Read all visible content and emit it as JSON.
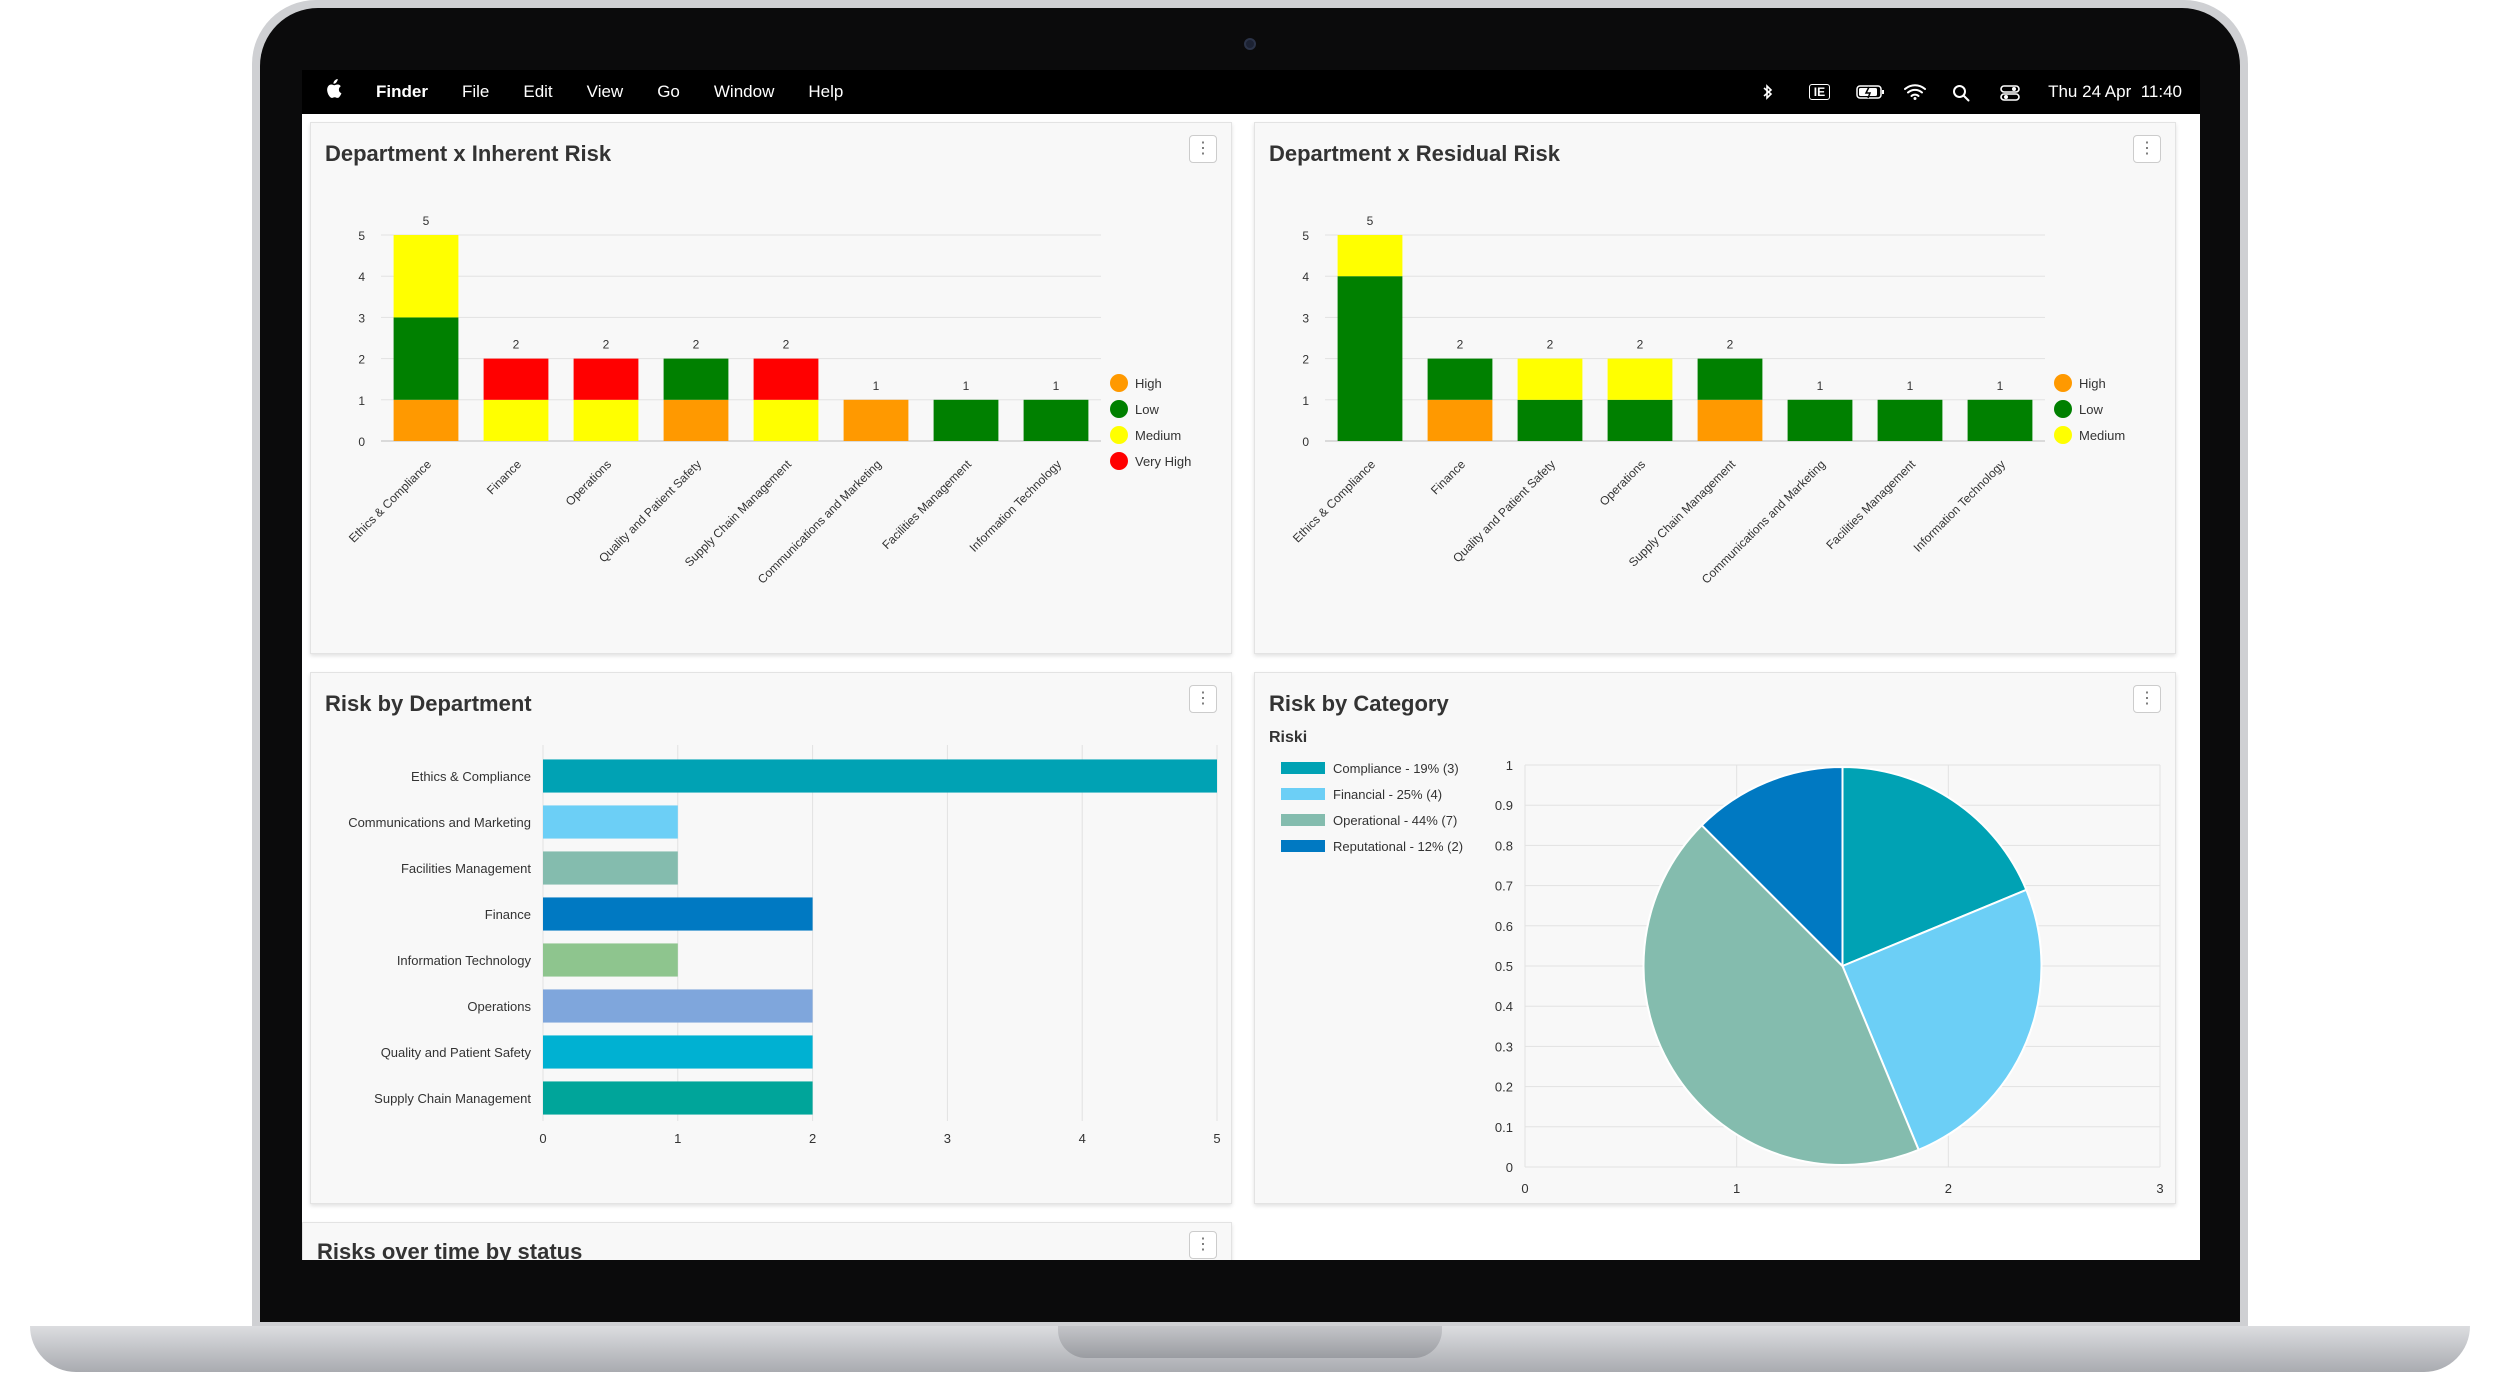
{
  "menubar": {
    "app": "Finder",
    "items": [
      "File",
      "Edit",
      "View",
      "Go",
      "Window",
      "Help"
    ],
    "status_input": "IE",
    "clock": "Thu 24 Apr  11:40"
  },
  "cards": {
    "inherent": {
      "title": "Department x Inherent Risk",
      "menu": "⋮"
    },
    "residual": {
      "title": "Department x Residual Risk",
      "menu": "⋮"
    },
    "by_department": {
      "title": "Risk by Department",
      "menu": "⋮"
    },
    "by_category": {
      "title": "Risk by Category",
      "subtitle": "Riski",
      "menu": "⋮"
    },
    "over_time": {
      "title": "Risks over time by status",
      "menu": "⋮"
    }
  },
  "colors": {
    "high": "#ff9900",
    "low": "#008000",
    "medium": "#ffff00",
    "very_high": "#ff0000"
  },
  "chart_data": [
    {
      "id": "inherent",
      "type": "bar",
      "stacked": true,
      "categories": [
        "Ethics & Compliance",
        "Finance",
        "Operations",
        "Quality and Patient Safety",
        "Supply Chain Management",
        "Communications and Marketing",
        "Facilities Management",
        "Information Technology"
      ],
      "series": [
        {
          "name": "High",
          "color": "#ff9900",
          "values": [
            1,
            0,
            0,
            1,
            0,
            1,
            0,
            0
          ]
        },
        {
          "name": "Low",
          "color": "#008000",
          "values": [
            2,
            0,
            0,
            1,
            0,
            0,
            1,
            1
          ]
        },
        {
          "name": "Medium",
          "color": "#ffff00",
          "values": [
            2,
            1,
            1,
            0,
            1,
            0,
            0,
            0
          ]
        },
        {
          "name": "Very High",
          "color": "#ff0000",
          "values": [
            0,
            1,
            1,
            0,
            1,
            0,
            0,
            0
          ]
        }
      ],
      "stack_order": [
        "High",
        "Low",
        "Medium",
        "Very High"
      ],
      "totals": [
        5,
        2,
        2,
        2,
        2,
        1,
        1,
        1
      ],
      "y_ticks": [
        0,
        1,
        2,
        3,
        4,
        5
      ],
      "ylim": [
        0,
        5
      ],
      "legend": "right"
    },
    {
      "id": "residual",
      "type": "bar",
      "stacked": true,
      "categories": [
        "Ethics & Compliance",
        "Finance",
        "Quality and Patient Safety",
        "Operations",
        "Supply Chain Management",
        "Communications and Marketing",
        "Facilities Management",
        "Information Technology"
      ],
      "series": [
        {
          "name": "High",
          "color": "#ff9900",
          "values": [
            0,
            1,
            0,
            0,
            1,
            0,
            0,
            0
          ]
        },
        {
          "name": "Low",
          "color": "#008000",
          "values": [
            4,
            1,
            1,
            1,
            1,
            1,
            1,
            1
          ]
        },
        {
          "name": "Medium",
          "color": "#ffff00",
          "values": [
            1,
            0,
            1,
            1,
            0,
            0,
            0,
            0
          ]
        }
      ],
      "stack_order": [
        "High",
        "Low",
        "Medium"
      ],
      "totals": [
        5,
        2,
        2,
        2,
        2,
        1,
        1,
        1
      ],
      "y_ticks": [
        0,
        1,
        2,
        3,
        4,
        5
      ],
      "ylim": [
        0,
        5
      ],
      "legend": "right"
    },
    {
      "id": "by_department",
      "type": "bar",
      "orientation": "horizontal",
      "categories": [
        "Ethics & Compliance",
        "Communications and Marketing",
        "Facilities Management",
        "Finance",
        "Information Technology",
        "Operations",
        "Quality and Patient Safety",
        "Supply Chain Management"
      ],
      "values": [
        5,
        1,
        1,
        2,
        1,
        2,
        2,
        2
      ],
      "colors": [
        "#00a2b4",
        "#6ccff6",
        "#84bcae",
        "#0079c2",
        "#8ec58e",
        "#7fa6dc",
        "#00b1d2",
        "#00a59a"
      ],
      "x_ticks": [
        0,
        1,
        2,
        3,
        4,
        5
      ],
      "xlim": [
        0,
        5
      ]
    },
    {
      "id": "by_category",
      "type": "pie",
      "title": "Riski",
      "slices": [
        {
          "label": "Compliance - 19% (3)",
          "value": 3,
          "color": "#00a2b4"
        },
        {
          "label": "Financial - 25% (4)",
          "value": 4,
          "color": "#6ccff6"
        },
        {
          "label": "Operational - 44% (7)",
          "value": 7,
          "color": "#84bcae"
        },
        {
          "label": "Reputational - 12% (2)",
          "value": 2,
          "color": "#0079c2"
        }
      ],
      "x_ticks": [
        0,
        1,
        2,
        3
      ],
      "y_ticks": [
        0,
        0.1,
        0.2,
        0.3,
        0.4,
        0.5,
        0.6,
        0.7,
        0.8,
        0.9,
        1
      ],
      "legend": "top-left"
    }
  ]
}
